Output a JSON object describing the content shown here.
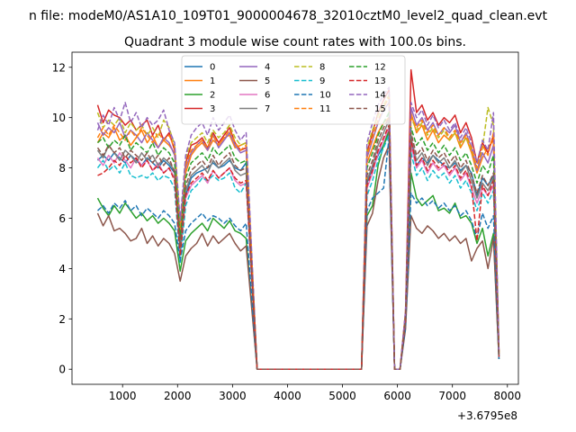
{
  "chart_data": {
    "type": "line",
    "suptitle": "n file: modeM0/AS1A10_109T01_9000004678_32010cztM0_level2_quad_clean.evt",
    "title": "Quadrant 3 module wise count rates with 100.0s bins.",
    "xlabel": "",
    "ylabel": "",
    "x_offset_text": "+3.6795e8",
    "xlim": [
      80,
      8200
    ],
    "ylim": [
      -0.6,
      12.6
    ],
    "xticks": [
      1000,
      2000,
      3000,
      4000,
      5000,
      6000,
      7000,
      8000
    ],
    "yticks": [
      0,
      2,
      4,
      6,
      8,
      10,
      12
    ],
    "x_tick_labels": [
      "1000",
      "2000",
      "3000",
      "4000",
      "5000",
      "6000",
      "7000",
      "8000"
    ],
    "y_tick_labels": [
      "0",
      "2",
      "4",
      "6",
      "8",
      "10",
      "12"
    ],
    "grid": false,
    "legend_location": "upper center",
    "legend_columns": 4,
    "x": [
      547,
      647,
      747,
      847,
      947,
      1047,
      1147,
      1247,
      1347,
      1447,
      1547,
      1647,
      1747,
      1847,
      1947,
      2047,
      2147,
      2247,
      2347,
      2447,
      2547,
      2647,
      2747,
      2847,
      2947,
      3047,
      3147,
      3247,
      3447,
      3647,
      3847,
      4047,
      4247,
      4447,
      4647,
      4847,
      5047,
      5247,
      5347,
      5447,
      5547,
      5647,
      5747,
      5847,
      5947,
      6047,
      6147,
      6247,
      6347,
      6447,
      6547,
      6647,
      6747,
      6847,
      6947,
      7047,
      7147,
      7247,
      7347,
      7447,
      7547,
      7647,
      7747,
      7847
    ],
    "series": [
      {
        "name": "0",
        "color": "#1f77b4",
        "style": "solid",
        "values": [
          8.3,
          8.5,
          8.3,
          8.6,
          8.4,
          8.2,
          8.5,
          8.3,
          8.1,
          8.4,
          8.2,
          8.0,
          8.3,
          8.1,
          7.8,
          4.8,
          6.9,
          7.6,
          7.8,
          7.9,
          8.0,
          8.2,
          8.0,
          8.1,
          8.3,
          8.0,
          7.9,
          8.2,
          0,
          0,
          0,
          0,
          0,
          0,
          0,
          0,
          0,
          0,
          0,
          7.4,
          8.0,
          8.5,
          8.9,
          9.4,
          0,
          0,
          1.9,
          9.0,
          8.1,
          8.4,
          8.2,
          8.5,
          8.3,
          8.1,
          8.0,
          8.2,
          7.9,
          8.1,
          7.8,
          6.9,
          7.6,
          7.3,
          7.7,
          0.5
        ]
      },
      {
        "name": "1",
        "color": "#ff7f0e",
        "style": "solid",
        "values": [
          9.0,
          9.4,
          9.2,
          9.6,
          9.1,
          9.3,
          8.9,
          9.2,
          9.5,
          9.0,
          9.3,
          8.8,
          9.1,
          8.9,
          8.6,
          5.6,
          7.8,
          8.5,
          8.8,
          9.0,
          8.7,
          9.1,
          8.9,
          9.2,
          9.3,
          8.8,
          8.9,
          9.0,
          0,
          0,
          0,
          0,
          0,
          0,
          0,
          0,
          0,
          0,
          0,
          8.2,
          8.8,
          9.4,
          9.8,
          10.0,
          0,
          0,
          2.1,
          10.2,
          9.4,
          9.7,
          9.1,
          9.5,
          9.0,
          9.3,
          9.1,
          9.4,
          8.8,
          9.2,
          8.6,
          7.8,
          8.4,
          8.8,
          9.1,
          0.6
        ]
      },
      {
        "name": "2",
        "color": "#2ca02c",
        "style": "solid",
        "values": [
          6.8,
          6.4,
          6.1,
          6.5,
          6.2,
          6.6,
          6.3,
          6.0,
          6.2,
          5.9,
          6.1,
          5.8,
          6.0,
          5.8,
          5.5,
          3.9,
          5.1,
          5.4,
          5.6,
          5.8,
          5.5,
          6.0,
          5.8,
          5.6,
          5.9,
          5.5,
          5.4,
          5.2,
          0,
          0,
          0,
          0,
          0,
          0,
          0,
          0,
          0,
          0,
          0,
          6.1,
          6.5,
          8.1,
          8.9,
          9.5,
          0,
          0,
          1.8,
          7.8,
          6.8,
          6.5,
          6.7,
          6.9,
          6.3,
          6.4,
          6.2,
          6.6,
          6.0,
          6.1,
          5.8,
          5.0,
          5.6,
          4.5,
          5.4,
          0.4
        ]
      },
      {
        "name": "3",
        "color": "#d62728",
        "style": "solid",
        "values": [
          10.5,
          9.8,
          10.3,
          10.1,
          10.0,
          9.7,
          9.9,
          9.5,
          9.7,
          9.9,
          9.3,
          9.7,
          9.1,
          9.4,
          8.7,
          5.3,
          8.2,
          8.9,
          9.0,
          9.2,
          8.8,
          9.4,
          9.0,
          9.3,
          9.6,
          9.0,
          8.7,
          8.8,
          0,
          0,
          0,
          0,
          0,
          0,
          0,
          0,
          0,
          0,
          0,
          8.6,
          9.4,
          10.2,
          10.7,
          11.1,
          0,
          0,
          2.3,
          11.9,
          10.2,
          10.5,
          9.9,
          10.2,
          9.7,
          10.0,
          9.8,
          10.1,
          9.4,
          9.8,
          9.2,
          8.2,
          9.0,
          8.6,
          9.3,
          0.7
        ]
      },
      {
        "name": "4",
        "color": "#9467bd",
        "style": "solid",
        "values": [
          9.8,
          9.3,
          9.6,
          9.4,
          9.8,
          9.2,
          9.5,
          9.3,
          9.0,
          9.4,
          9.1,
          8.8,
          9.2,
          9.0,
          8.5,
          5.8,
          8.0,
          8.6,
          8.9,
          9.1,
          8.7,
          9.3,
          8.8,
          9.1,
          9.4,
          8.9,
          8.6,
          8.7,
          0,
          0,
          0,
          0,
          0,
          0,
          0,
          0,
          0,
          0,
          0,
          8.4,
          9.1,
          9.8,
          10.3,
          10.6,
          0,
          0,
          2.2,
          10.4,
          9.7,
          10.0,
          9.5,
          9.8,
          9.3,
          9.6,
          9.4,
          9.7,
          9.0,
          9.4,
          8.8,
          7.9,
          8.6,
          8.2,
          8.9,
          0.6
        ]
      },
      {
        "name": "5",
        "color": "#8c564b",
        "style": "solid",
        "values": [
          6.2,
          5.7,
          6.1,
          5.5,
          5.6,
          5.4,
          5.1,
          5.2,
          5.6,
          5.0,
          5.3,
          4.9,
          5.2,
          5.0,
          4.6,
          3.5,
          4.5,
          4.8,
          5.0,
          5.4,
          4.9,
          5.3,
          5.0,
          5.2,
          5.4,
          5.0,
          4.7,
          4.9,
          0,
          0,
          0,
          0,
          0,
          0,
          0,
          0,
          0,
          0,
          0,
          5.7,
          6.2,
          7.5,
          8.4,
          8.9,
          0,
          0,
          1.6,
          6.1,
          5.6,
          5.4,
          5.7,
          5.5,
          5.2,
          5.4,
          5.1,
          5.3,
          5.0,
          5.2,
          4.3,
          4.8,
          5.1,
          4.0,
          5.2,
          0.4
        ]
      },
      {
        "name": "6",
        "color": "#e377c2",
        "style": "solid",
        "values": [
          8.4,
          8.1,
          8.5,
          8.2,
          8.6,
          8.3,
          8.0,
          8.4,
          8.1,
          8.3,
          7.9,
          8.2,
          7.8,
          8.0,
          7.6,
          4.6,
          6.8,
          7.3,
          7.5,
          7.7,
          7.4,
          7.9,
          7.6,
          7.8,
          8.0,
          7.5,
          7.3,
          7.4,
          0,
          0,
          0,
          0,
          0,
          0,
          0,
          0,
          0,
          0,
          0,
          7.2,
          7.8,
          8.6,
          9.1,
          9.6,
          0,
          0,
          1.9,
          8.9,
          8.0,
          8.3,
          7.8,
          8.2,
          7.9,
          8.1,
          7.7,
          8.0,
          7.5,
          7.8,
          7.2,
          6.6,
          7.2,
          6.9,
          7.3,
          0.5
        ]
      },
      {
        "name": "7",
        "color": "#7f7f7f",
        "style": "solid",
        "values": [
          8.7,
          8.4,
          8.9,
          8.6,
          8.3,
          8.7,
          8.5,
          8.2,
          8.6,
          8.3,
          8.5,
          8.1,
          8.4,
          8.2,
          7.9,
          4.7,
          7.1,
          7.7,
          7.9,
          8.1,
          7.8,
          8.3,
          8.0,
          8.2,
          8.4,
          7.9,
          7.7,
          7.8,
          0,
          0,
          0,
          0,
          0,
          0,
          0,
          0,
          0,
          0,
          0,
          7.5,
          8.1,
          8.9,
          9.4,
          9.9,
          0,
          0,
          2.0,
          9.2,
          8.3,
          8.6,
          8.1,
          8.5,
          8.2,
          8.4,
          8.0,
          8.3,
          7.8,
          8.1,
          7.5,
          6.8,
          7.4,
          7.1,
          7.6,
          0.5
        ]
      },
      {
        "name": "8",
        "color": "#bcbd22",
        "style": "dashed",
        "values": [
          10.2,
          9.6,
          9.9,
          9.7,
          10.0,
          9.4,
          9.8,
          9.5,
          9.7,
          9.3,
          9.6,
          9.2,
          9.9,
          9.6,
          8.9,
          5.7,
          8.4,
          9.0,
          9.2,
          9.4,
          9.0,
          9.5,
          9.2,
          9.4,
          9.7,
          9.2,
          8.9,
          9.0,
          0,
          0,
          0,
          0,
          0,
          0,
          0,
          0,
          0,
          0,
          0,
          8.8,
          9.5,
          10.1,
          10.5,
          10.9,
          0,
          0,
          2.2,
          10.0,
          9.5,
          9.8,
          9.3,
          9.6,
          9.2,
          9.5,
          9.1,
          9.4,
          8.9,
          9.2,
          8.7,
          8.0,
          8.8,
          10.4,
          9.7,
          0.7
        ]
      },
      {
        "name": "9",
        "color": "#17becf",
        "style": "dashed",
        "values": [
          8.0,
          8.3,
          7.9,
          8.1,
          7.8,
          8.2,
          7.7,
          7.6,
          7.7,
          7.6,
          7.8,
          7.5,
          7.7,
          7.6,
          7.2,
          4.2,
          6.5,
          7.1,
          7.3,
          7.6,
          7.5,
          7.7,
          7.5,
          7.6,
          7.8,
          7.2,
          7.0,
          7.4,
          0,
          0,
          0,
          0,
          0,
          0,
          0,
          0,
          0,
          0,
          0,
          6.9,
          7.5,
          8.3,
          8.8,
          9.3,
          0,
          0,
          1.8,
          8.6,
          7.7,
          8.0,
          7.5,
          7.9,
          7.6,
          7.8,
          7.4,
          7.7,
          7.2,
          7.5,
          7.0,
          6.3,
          7.0,
          6.6,
          7.1,
          0.5
        ]
      },
      {
        "name": "10",
        "color": "#1f77b4",
        "style": "dashed",
        "values": [
          6.3,
          6.5,
          6.2,
          6.6,
          6.4,
          6.7,
          6.3,
          6.5,
          6.1,
          6.4,
          6.2,
          6.0,
          6.3,
          6.1,
          5.8,
          4.3,
          5.5,
          5.8,
          6.0,
          6.2,
          5.9,
          6.1,
          6.0,
          5.8,
          6.0,
          5.7,
          5.5,
          5.8,
          0,
          0,
          0,
          0,
          0,
          0,
          0,
          0,
          0,
          0,
          0,
          6.3,
          6.8,
          7.0,
          7.2,
          9.2,
          0,
          0,
          1.7,
          7.0,
          6.6,
          6.8,
          6.5,
          6.7,
          6.4,
          6.6,
          6.3,
          6.5,
          6.1,
          6.3,
          5.9,
          5.2,
          6.2,
          5.6,
          6.1,
          0.4
        ]
      },
      {
        "name": "11",
        "color": "#ff7f0e",
        "style": "dashed",
        "values": [
          9.2,
          9.6,
          9.3,
          9.7,
          9.4,
          9.1,
          9.5,
          9.2,
          9.6,
          9.3,
          9.0,
          9.4,
          9.1,
          9.3,
          8.8,
          5.5,
          8.1,
          8.7,
          8.9,
          9.1,
          8.8,
          9.3,
          8.9,
          9.2,
          9.5,
          9.0,
          8.7,
          8.9,
          0,
          0,
          0,
          0,
          0,
          0,
          0,
          0,
          0,
          0,
          0,
          8.5,
          9.2,
          9.9,
          10.4,
          10.8,
          0,
          0,
          2.2,
          10.1,
          9.6,
          9.9,
          9.4,
          9.7,
          9.3,
          9.6,
          9.2,
          9.5,
          9.0,
          9.3,
          8.8,
          8.0,
          8.9,
          8.5,
          9.4,
          0.6
        ]
      },
      {
        "name": "12",
        "color": "#2ca02c",
        "style": "dashed",
        "values": [
          9.0,
          9.2,
          8.8,
          9.1,
          8.9,
          9.3,
          8.7,
          9.0,
          8.8,
          8.6,
          9.0,
          8.5,
          8.8,
          8.6,
          8.2,
          5.2,
          7.6,
          8.2,
          8.4,
          8.6,
          8.3,
          8.8,
          8.5,
          8.7,
          8.9,
          8.4,
          8.2,
          8.3,
          0,
          0,
          0,
          0,
          0,
          0,
          0,
          0,
          0,
          0,
          0,
          8.0,
          8.6,
          9.3,
          9.8,
          10.2,
          0,
          0,
          2.1,
          9.6,
          8.9,
          9.2,
          8.7,
          9.0,
          8.6,
          8.9,
          8.5,
          8.8,
          8.3,
          8.6,
          8.1,
          7.4,
          8.1,
          7.8,
          8.5,
          0.6
        ]
      },
      {
        "name": "13",
        "color": "#d62728",
        "style": "dashed",
        "values": [
          7.7,
          7.8,
          8.0,
          8.3,
          8.1,
          8.5,
          8.2,
          8.4,
          8.0,
          8.3,
          7.9,
          8.1,
          7.8,
          8.0,
          7.5,
          4.5,
          6.9,
          7.4,
          7.6,
          7.8,
          7.5,
          7.9,
          7.6,
          7.8,
          8.0,
          7.6,
          7.4,
          7.5,
          0,
          0,
          0,
          0,
          0,
          0,
          0,
          0,
          0,
          0,
          0,
          7.3,
          7.9,
          8.7,
          9.2,
          9.7,
          0,
          0,
          1.9,
          9.1,
          8.1,
          8.4,
          7.9,
          8.3,
          8.0,
          8.2,
          7.8,
          8.1,
          7.6,
          7.9,
          7.3,
          5.1,
          7.3,
          6.9,
          7.5,
          0.5
        ]
      },
      {
        "name": "14",
        "color": "#9467bd",
        "style": "dashed",
        "values": [
          9.5,
          10.1,
          9.7,
          10.4,
          9.9,
          10.6,
          9.8,
          10.2,
          9.6,
          10.0,
          9.7,
          9.9,
          10.3,
          9.5,
          9.0,
          5.9,
          8.5,
          9.3,
          9.6,
          9.8,
          9.3,
          10.0,
          9.5,
          9.8,
          10.1,
          9.5,
          9.1,
          9.4,
          0,
          0,
          0,
          0,
          0,
          0,
          0,
          0,
          0,
          0,
          0,
          9.0,
          9.8,
          10.5,
          10.9,
          11.2,
          0,
          0,
          2.3,
          10.6,
          10.0,
          10.3,
          9.7,
          10.1,
          9.6,
          9.9,
          9.5,
          9.8,
          9.2,
          9.6,
          9.0,
          8.2,
          9.1,
          8.7,
          10.2,
          0.7
        ]
      },
      {
        "name": "15",
        "color": "#8c564b",
        "style": "dashed",
        "values": [
          8.8,
          8.5,
          8.9,
          8.6,
          8.8,
          8.4,
          8.7,
          8.5,
          8.3,
          8.6,
          8.2,
          8.5,
          8.1,
          8.4,
          7.8,
          4.9,
          7.3,
          7.9,
          8.1,
          8.3,
          8.0,
          8.5,
          8.1,
          8.4,
          8.6,
          8.1,
          7.9,
          8.0,
          0,
          0,
          0,
          0,
          0,
          0,
          0,
          0,
          0,
          0,
          0,
          7.7,
          8.3,
          9.1,
          9.6,
          10.0,
          0,
          0,
          2.0,
          9.4,
          8.5,
          8.8,
          8.3,
          8.7,
          8.4,
          8.6,
          8.2,
          8.5,
          8.0,
          8.3,
          7.7,
          7.0,
          7.7,
          7.3,
          7.8,
          0.5
        ]
      }
    ]
  }
}
